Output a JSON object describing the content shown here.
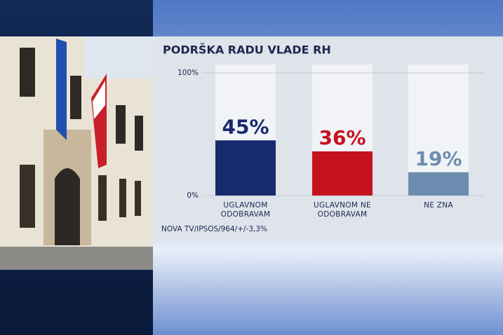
{
  "chart_data": {
    "type": "bar",
    "title": "PODRŠKA RADU VLADE RH",
    "categories": [
      "UGLAVNOM ODOBRAVAM",
      "UGLAVNOM NE ODOBRAVAM",
      "NE ZNA"
    ],
    "values": [
      45,
      36,
      19
    ],
    "value_labels": [
      "45%",
      "36%",
      "19%"
    ],
    "colors": [
      "#182a6e",
      "#c5121f",
      "#6d8db0"
    ],
    "ylim": [
      0,
      100
    ],
    "yticks": [
      {
        "value": 0,
        "label": "0%"
      },
      {
        "value": 100,
        "label": "100%"
      }
    ],
    "grid": true,
    "source": "NOVA TV/IPSOS/964/+/-3,3%"
  }
}
